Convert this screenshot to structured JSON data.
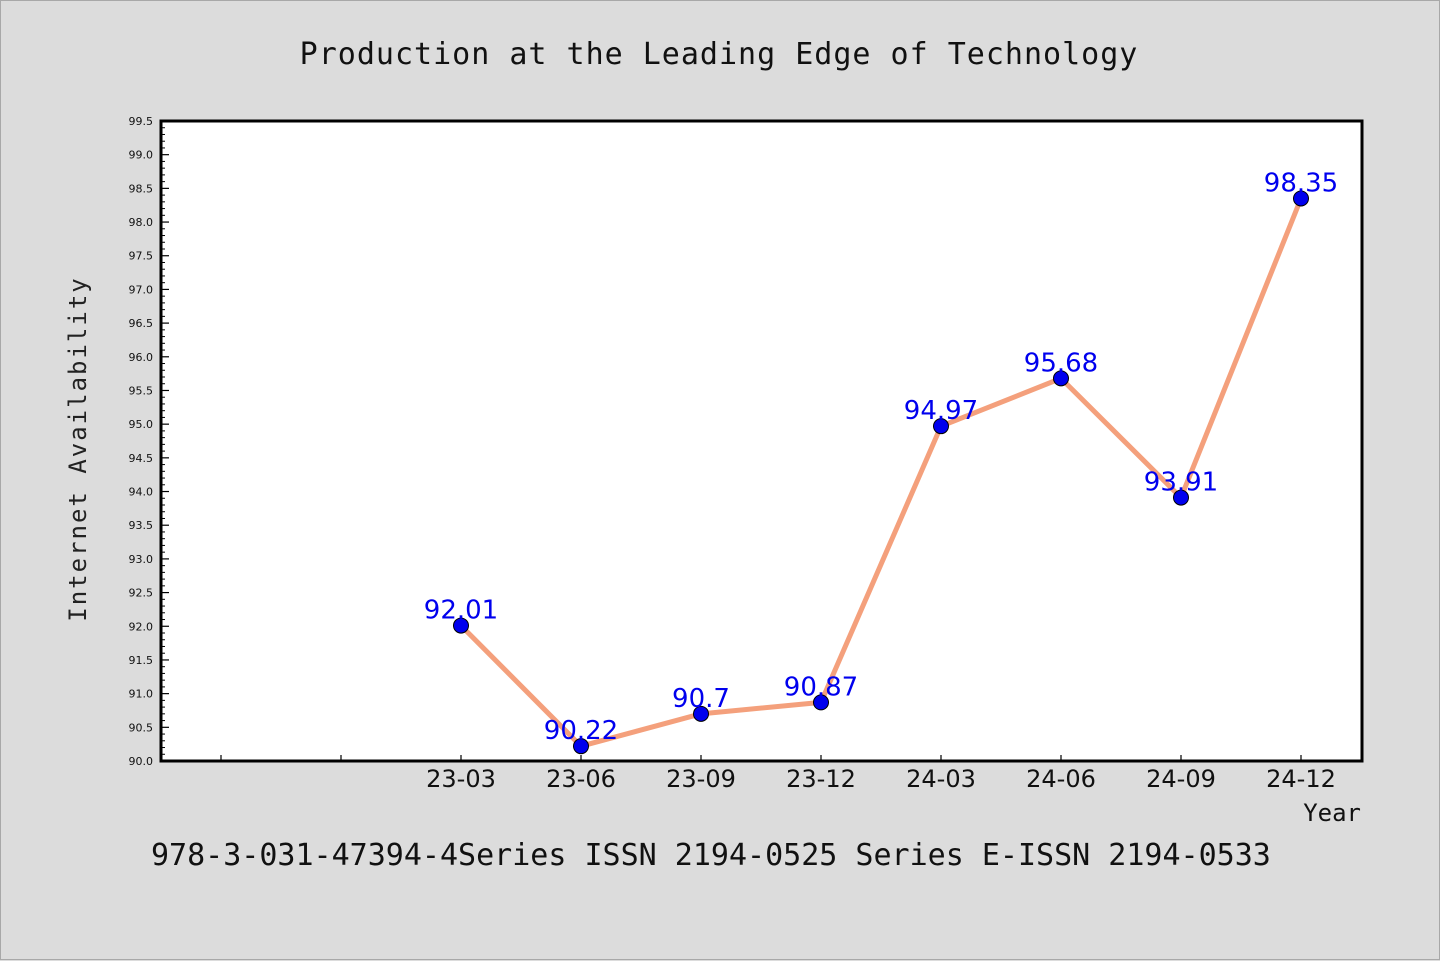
{
  "chart_data": {
    "type": "line",
    "title": "Production at the Leading Edge of Technology",
    "footer": "978-3-031-47394-4Series ISSN 2194-0525 Series E-ISSN 2194-0533",
    "xlabel": "Year",
    "ylabel": "Internet Availability",
    "ylim": [
      90.0,
      99.5
    ],
    "ytick_step": 0.5,
    "categories": [
      "23-03",
      "23-06",
      "23-09",
      "23-12",
      "24-03",
      "24-06",
      "24-09",
      "24-12"
    ],
    "series": [
      {
        "values": [
          92.01,
          90.22,
          90.7,
          90.87,
          94.97,
          95.68,
          93.91,
          98.35
        ],
        "data_labels": [
          "92.01",
          "90.22",
          "90.7",
          "90.87",
          "94.97",
          "95.68",
          "93.91",
          "98.35"
        ],
        "line_color": "#f4a07c",
        "marker_color": "#0000ee",
        "label_color": "#0000ee"
      }
    ],
    "grid": false,
    "legend": "none",
    "background": "#dcdcdc",
    "plot_background": "#ffffff"
  }
}
